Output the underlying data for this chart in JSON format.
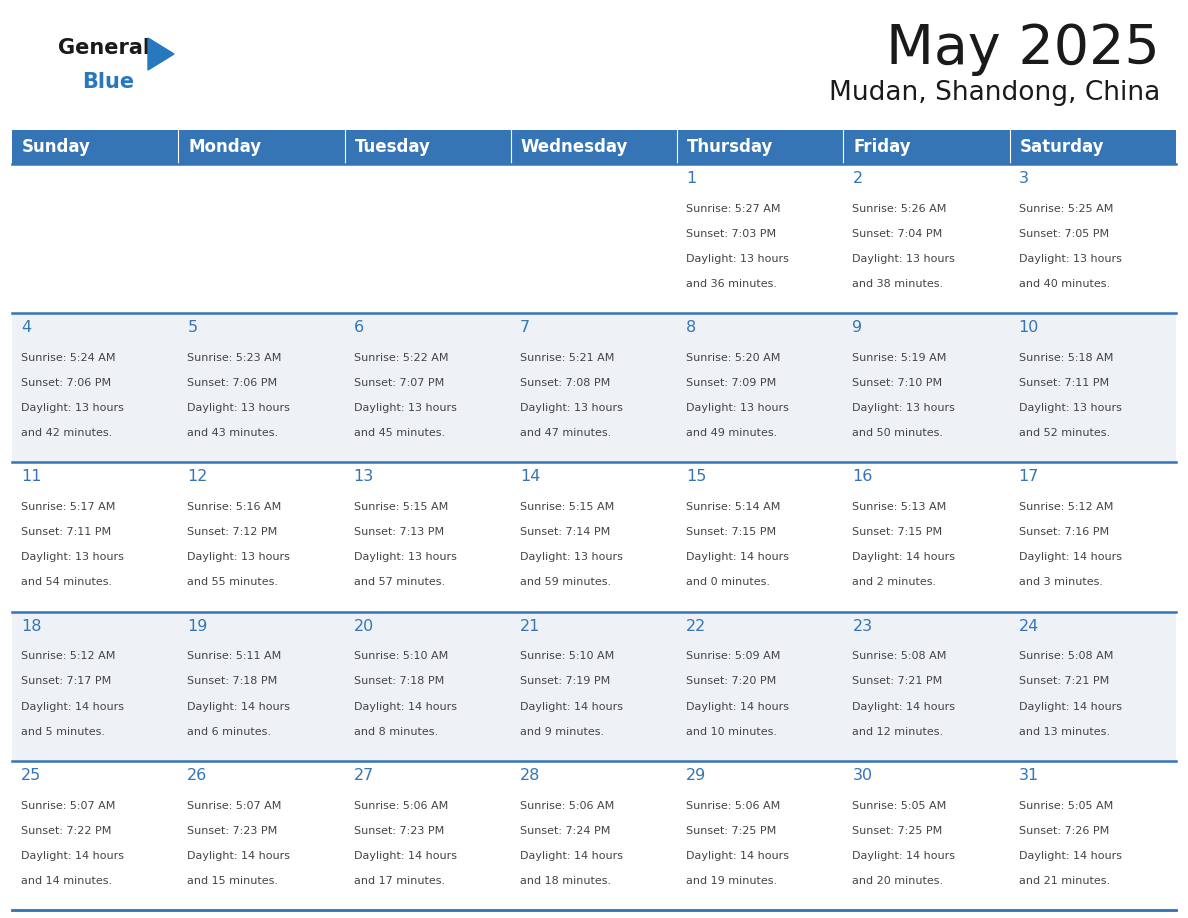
{
  "title": "May 2025",
  "subtitle": "Mudan, Shandong, China",
  "header_bg_color": "#3575b5",
  "header_text_color": "#ffffff",
  "days_of_week": [
    "Sunday",
    "Monday",
    "Tuesday",
    "Wednesday",
    "Thursday",
    "Friday",
    "Saturday"
  ],
  "bg_color": "#ffffff",
  "row_even_color": "#ffffff",
  "row_odd_color": "#eef2f7",
  "cell_border_color": "#3575b5",
  "day_number_color": "#3575b5",
  "text_color": "#444444",
  "logo_black": "#1a1a1a",
  "logo_blue": "#2878c0",
  "title_color": "#1a1a1a",
  "calendar_data": [
    [
      null,
      null,
      null,
      null,
      {
        "day": 1,
        "sunrise": "5:27 AM",
        "sunset": "7:03 PM",
        "daylight_hours": 13,
        "daylight_minutes": 36
      },
      {
        "day": 2,
        "sunrise": "5:26 AM",
        "sunset": "7:04 PM",
        "daylight_hours": 13,
        "daylight_minutes": 38
      },
      {
        "day": 3,
        "sunrise": "5:25 AM",
        "sunset": "7:05 PM",
        "daylight_hours": 13,
        "daylight_minutes": 40
      }
    ],
    [
      {
        "day": 4,
        "sunrise": "5:24 AM",
        "sunset": "7:06 PM",
        "daylight_hours": 13,
        "daylight_minutes": 42
      },
      {
        "day": 5,
        "sunrise": "5:23 AM",
        "sunset": "7:06 PM",
        "daylight_hours": 13,
        "daylight_minutes": 43
      },
      {
        "day": 6,
        "sunrise": "5:22 AM",
        "sunset": "7:07 PM",
        "daylight_hours": 13,
        "daylight_minutes": 45
      },
      {
        "day": 7,
        "sunrise": "5:21 AM",
        "sunset": "7:08 PM",
        "daylight_hours": 13,
        "daylight_minutes": 47
      },
      {
        "day": 8,
        "sunrise": "5:20 AM",
        "sunset": "7:09 PM",
        "daylight_hours": 13,
        "daylight_minutes": 49
      },
      {
        "day": 9,
        "sunrise": "5:19 AM",
        "sunset": "7:10 PM",
        "daylight_hours": 13,
        "daylight_minutes": 50
      },
      {
        "day": 10,
        "sunrise": "5:18 AM",
        "sunset": "7:11 PM",
        "daylight_hours": 13,
        "daylight_minutes": 52
      }
    ],
    [
      {
        "day": 11,
        "sunrise": "5:17 AM",
        "sunset": "7:11 PM",
        "daylight_hours": 13,
        "daylight_minutes": 54
      },
      {
        "day": 12,
        "sunrise": "5:16 AM",
        "sunset": "7:12 PM",
        "daylight_hours": 13,
        "daylight_minutes": 55
      },
      {
        "day": 13,
        "sunrise": "5:15 AM",
        "sunset": "7:13 PM",
        "daylight_hours": 13,
        "daylight_minutes": 57
      },
      {
        "day": 14,
        "sunrise": "5:15 AM",
        "sunset": "7:14 PM",
        "daylight_hours": 13,
        "daylight_minutes": 59
      },
      {
        "day": 15,
        "sunrise": "5:14 AM",
        "sunset": "7:15 PM",
        "daylight_hours": 14,
        "daylight_minutes": 0
      },
      {
        "day": 16,
        "sunrise": "5:13 AM",
        "sunset": "7:15 PM",
        "daylight_hours": 14,
        "daylight_minutes": 2
      },
      {
        "day": 17,
        "sunrise": "5:12 AM",
        "sunset": "7:16 PM",
        "daylight_hours": 14,
        "daylight_minutes": 3
      }
    ],
    [
      {
        "day": 18,
        "sunrise": "5:12 AM",
        "sunset": "7:17 PM",
        "daylight_hours": 14,
        "daylight_minutes": 5
      },
      {
        "day": 19,
        "sunrise": "5:11 AM",
        "sunset": "7:18 PM",
        "daylight_hours": 14,
        "daylight_minutes": 6
      },
      {
        "day": 20,
        "sunrise": "5:10 AM",
        "sunset": "7:18 PM",
        "daylight_hours": 14,
        "daylight_minutes": 8
      },
      {
        "day": 21,
        "sunrise": "5:10 AM",
        "sunset": "7:19 PM",
        "daylight_hours": 14,
        "daylight_minutes": 9
      },
      {
        "day": 22,
        "sunrise": "5:09 AM",
        "sunset": "7:20 PM",
        "daylight_hours": 14,
        "daylight_minutes": 10
      },
      {
        "day": 23,
        "sunrise": "5:08 AM",
        "sunset": "7:21 PM",
        "daylight_hours": 14,
        "daylight_minutes": 12
      },
      {
        "day": 24,
        "sunrise": "5:08 AM",
        "sunset": "7:21 PM",
        "daylight_hours": 14,
        "daylight_minutes": 13
      }
    ],
    [
      {
        "day": 25,
        "sunrise": "5:07 AM",
        "sunset": "7:22 PM",
        "daylight_hours": 14,
        "daylight_minutes": 14
      },
      {
        "day": 26,
        "sunrise": "5:07 AM",
        "sunset": "7:23 PM",
        "daylight_hours": 14,
        "daylight_minutes": 15
      },
      {
        "day": 27,
        "sunrise": "5:06 AM",
        "sunset": "7:23 PM",
        "daylight_hours": 14,
        "daylight_minutes": 17
      },
      {
        "day": 28,
        "sunrise": "5:06 AM",
        "sunset": "7:24 PM",
        "daylight_hours": 14,
        "daylight_minutes": 18
      },
      {
        "day": 29,
        "sunrise": "5:06 AM",
        "sunset": "7:25 PM",
        "daylight_hours": 14,
        "daylight_minutes": 19
      },
      {
        "day": 30,
        "sunrise": "5:05 AM",
        "sunset": "7:25 PM",
        "daylight_hours": 14,
        "daylight_minutes": 20
      },
      {
        "day": 31,
        "sunrise": "5:05 AM",
        "sunset": "7:26 PM",
        "daylight_hours": 14,
        "daylight_minutes": 21
      }
    ]
  ]
}
